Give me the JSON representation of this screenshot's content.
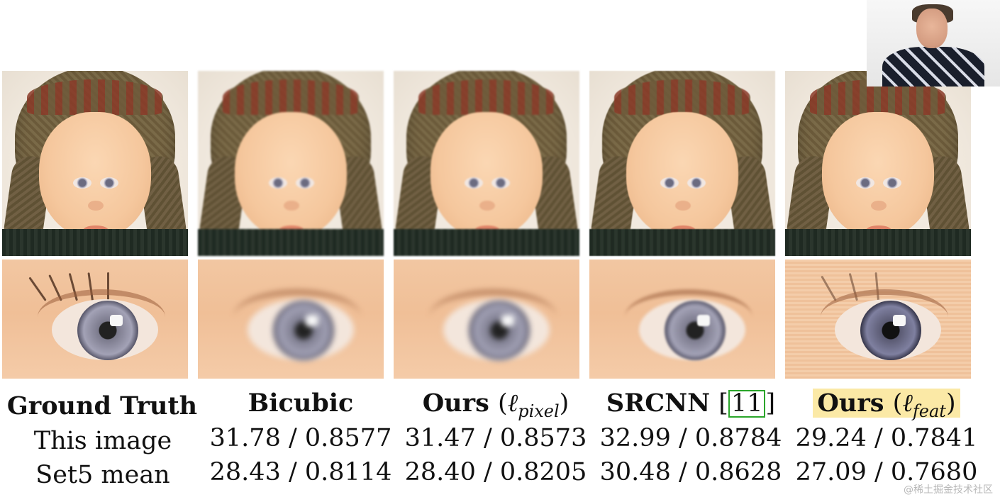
{
  "header_row": {
    "ground_truth_label": "Ground Truth",
    "bicubic_label": "Bicubic",
    "ours_pixel": {
      "label": "Ours",
      "open": "(",
      "symbol": "ℓ",
      "subscript": "pixel",
      "close": ")"
    },
    "srcnn": {
      "label": "SRCNN",
      "open": "[",
      "ref": "11",
      "close": "]"
    },
    "ours_feat": {
      "label": "Ours",
      "open": "(",
      "symbol": "ℓ",
      "subscript": "feat",
      "close": ")"
    }
  },
  "row_labels": {
    "this_image": "This image",
    "set5_mean": "Set5 mean"
  },
  "values": {
    "bicubic": {
      "this_image": "31.78 / 0.8577",
      "set5_mean": "28.43 / 0.8114"
    },
    "ours_pixel": {
      "this_image": "31.47 / 0.8573",
      "set5_mean": "28.40 / 0.8205"
    },
    "srcnn": {
      "this_image": "32.99 / 0.8784",
      "set5_mean": "30.48 / 0.8628"
    },
    "ours_feat": {
      "this_image": "29.24 / 0.7841",
      "set5_mean": "27.09 / 0.7680"
    }
  },
  "watermark": "@稀土掘金技术社区",
  "colors": {
    "highlight": "#fbe9a6",
    "ref_box": "#2aa52a"
  }
}
